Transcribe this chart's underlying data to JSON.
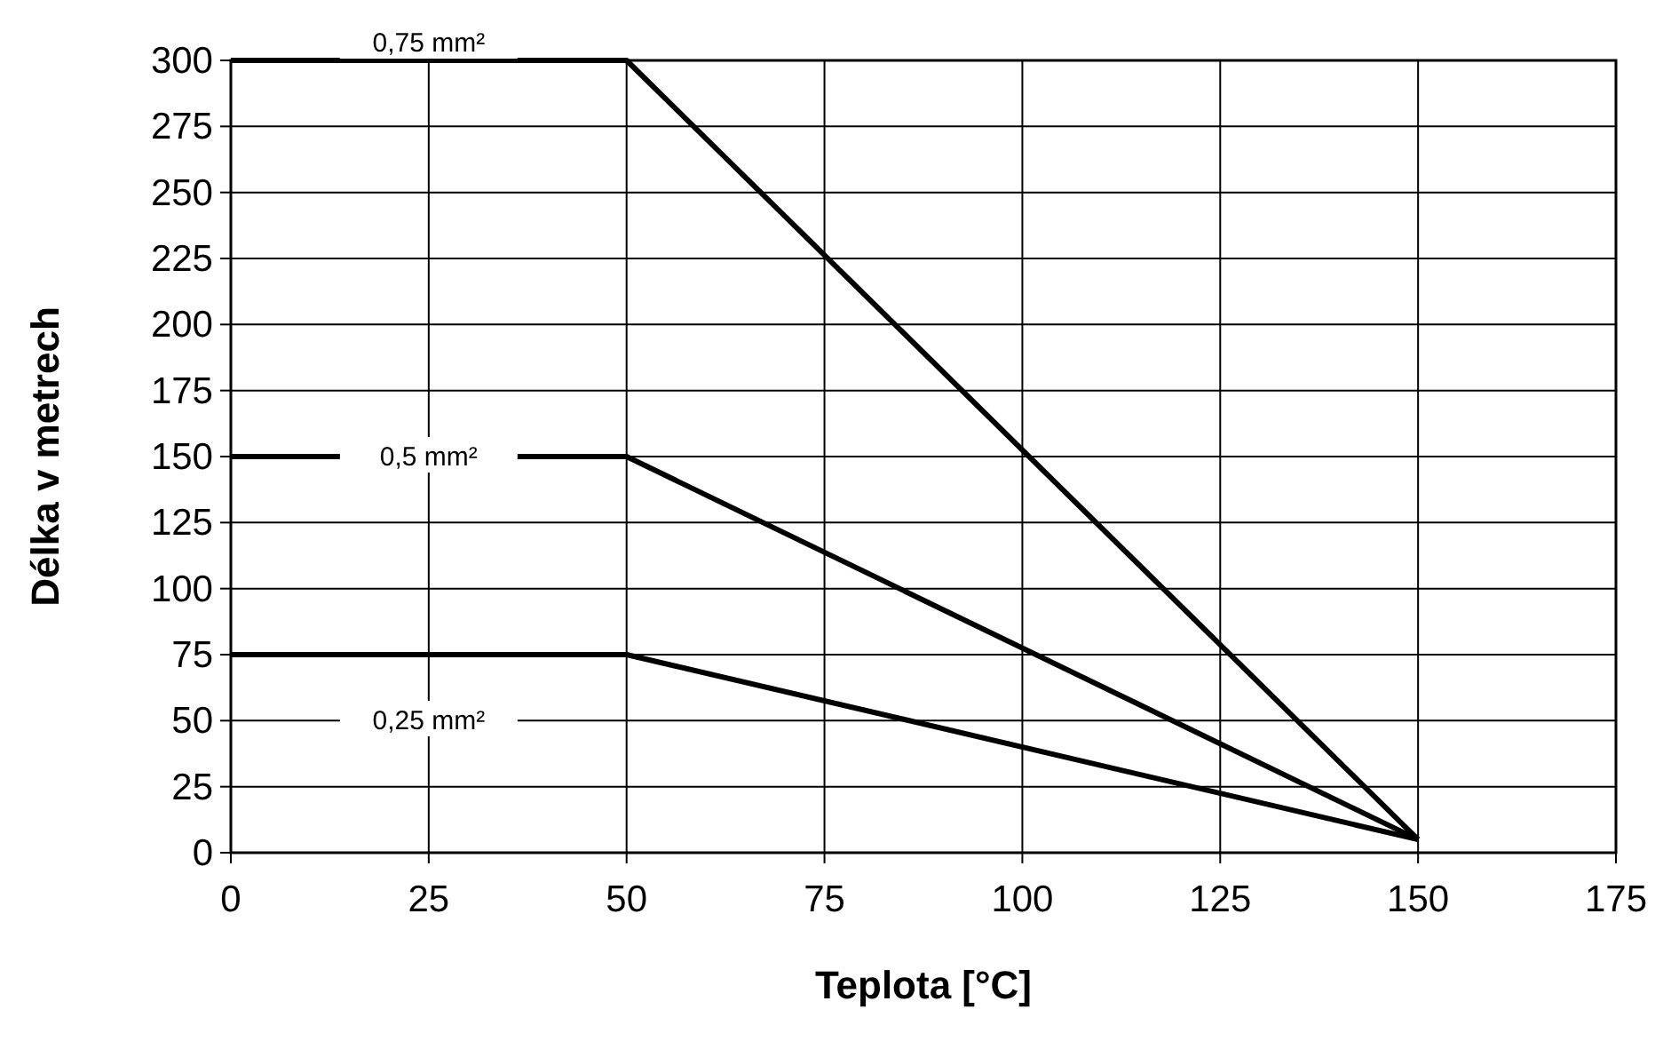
{
  "chart_data": {
    "type": "line",
    "xlabel": "Teplota [°C]",
    "ylabel": "Délka v metrech",
    "xlim": [
      0,
      175
    ],
    "xticks": [
      0,
      25,
      50,
      75,
      100,
      125,
      150,
      175
    ],
    "ylim": [
      0,
      300
    ],
    "yticks": [
      0,
      25,
      50,
      75,
      100,
      125,
      150,
      175,
      200,
      225,
      250,
      275,
      300
    ],
    "grid": true,
    "marker": "none",
    "line_style": "solid",
    "series": [
      {
        "name": "0,75 mm²",
        "color": "#000000",
        "x": [
          0,
          50,
          150
        ],
        "values": [
          300,
          300,
          5
        ]
      },
      {
        "name": "0,5 mm²",
        "color": "#000000",
        "x": [
          0,
          50,
          150
        ],
        "values": [
          150,
          150,
          5
        ]
      },
      {
        "name": "0,25 mm²",
        "color": "#000000",
        "x": [
          0,
          50,
          150
        ],
        "values": [
          75,
          75,
          5
        ]
      }
    ]
  }
}
